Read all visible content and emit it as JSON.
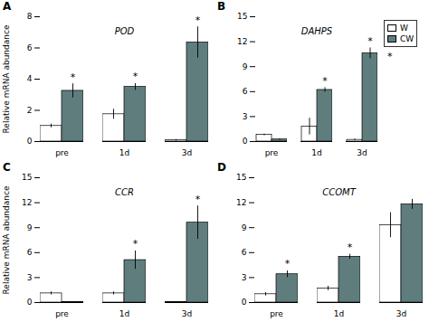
{
  "chart_data": [
    {
      "type": "bar",
      "title": "A",
      "ylabel": "Relative mRNA abundance",
      "categories": [
        "pre",
        "1d",
        "3d"
      ],
      "series": [
        {
          "name": "W",
          "color": "white",
          "values": [
            1.0,
            1.75,
            0.08
          ],
          "errors": [
            0.12,
            0.32,
            0.05
          ]
        },
        {
          "name": "CW",
          "color": "#607d7e",
          "values": [
            3.25,
            3.5,
            6.35
          ],
          "errors": [
            0.45,
            0.22,
            1.0
          ]
        }
      ],
      "ylim": [
        0,
        8
      ],
      "yticks": [
        0,
        2,
        4,
        6,
        8
      ],
      "annotations": [
        {
          "text": "POD"
        },
        {
          "text": "*",
          "series": "CW",
          "category": "pre"
        },
        {
          "text": "*",
          "series": "CW",
          "category": "1d"
        },
        {
          "text": "*",
          "series": "CW",
          "category": "3d"
        }
      ]
    },
    {
      "type": "bar",
      "title": "B",
      "categories": [
        "pre",
        "1d",
        "3d"
      ],
      "series": [
        {
          "name": "W",
          "color": "white",
          "values": [
            0.8,
            1.8,
            0.2
          ],
          "errors": [
            0.1,
            1.0,
            0.1
          ]
        },
        {
          "name": "CW",
          "color": "#607d7e",
          "values": [
            0.25,
            6.2,
            10.6
          ],
          "errors": [
            0.08,
            0.28,
            0.65
          ]
        }
      ],
      "ylim": [
        0,
        15
      ],
      "yticks": [
        0,
        3,
        6,
        9,
        12,
        15
      ],
      "legend": "upper right",
      "annotations": [
        {
          "text": "DAHPS"
        },
        {
          "text": "*",
          "series": "CW",
          "category": "1d"
        },
        {
          "text": "*",
          "series": "CW",
          "category": "3d"
        },
        {
          "text": "*",
          "series": "CW"
        }
      ]
    },
    {
      "type": "bar",
      "title": "C",
      "ylabel": "Relative mRNA abundance",
      "categories": [
        "pre",
        "1d",
        "3d"
      ],
      "series": [
        {
          "name": "W",
          "color": "white",
          "values": [
            1.1,
            1.1,
            0.05
          ],
          "errors": [
            0.18,
            0.18,
            0.04
          ]
        },
        {
          "name": "CW",
          "color": "#607d7e",
          "values": [
            0.05,
            5.1,
            9.6
          ],
          "errors": [
            0.04,
            1.1,
            2.0
          ]
        }
      ],
      "ylim": [
        0,
        15
      ],
      "yticks": [
        0,
        3,
        6,
        9,
        12,
        15
      ],
      "annotations": [
        {
          "text": "CCR"
        },
        {
          "text": "*",
          "series": "CW",
          "category": "1d"
        },
        {
          "text": "*",
          "series": "CW",
          "category": "3d"
        }
      ]
    },
    {
      "type": "bar",
      "title": "D",
      "categories": [
        "pre",
        "1d",
        "3d"
      ],
      "series": [
        {
          "name": "W",
          "color": "white",
          "values": [
            1.0,
            1.7,
            9.3
          ],
          "errors": [
            0.2,
            0.25,
            1.5
          ]
        },
        {
          "name": "CW",
          "color": "#607d7e",
          "values": [
            3.4,
            5.5,
            11.8
          ],
          "errors": [
            0.4,
            0.3,
            0.6
          ]
        }
      ],
      "ylim": [
        0,
        15
      ],
      "yticks": [
        0,
        3,
        6,
        9,
        12,
        15
      ],
      "annotations": [
        {
          "text": "CCOMT"
        },
        {
          "text": "*",
          "series": "CW",
          "category": "pre"
        },
        {
          "text": "*",
          "series": "CW",
          "category": "1d"
        }
      ]
    }
  ]
}
